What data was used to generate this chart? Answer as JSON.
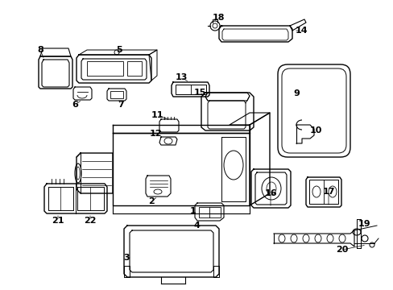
{
  "bg_color": "#ffffff",
  "line_color": "#000000",
  "label_color": "#000000",
  "font_size": 8,
  "figsize": [
    4.89,
    3.6
  ],
  "dpi": 100
}
